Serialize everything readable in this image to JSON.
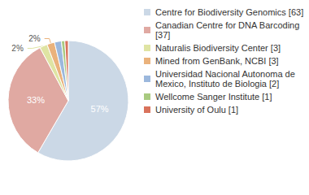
{
  "chart_data": {
    "type": "pie",
    "categories": [
      "Centre for Biodiversity Genomics [63]",
      "Canadian Centre for DNA Barcoding [37]",
      "Naturalis Biodiversity Center [3]",
      "Mined from GenBank, NCBI [3]",
      "Universidad Nacional Autonoma de Mexico, Instituto de Biologia [2]",
      "Wellcome Sanger Institute [1]",
      "University of Oulu [1]"
    ],
    "values": [
      57,
      33,
      2,
      2,
      1.8,
      0.9,
      0.9
    ],
    "value_labels": [
      "57%",
      "33%",
      "2%",
      "2%",
      null,
      null,
      null
    ],
    "colors": [
      "#cbd8e6",
      "#e0a9a2",
      "#dfe4a3",
      "#eab27c",
      "#9cb8dd",
      "#a9ca80",
      "#d9735c"
    ],
    "data_labels": true,
    "legend": "right"
  }
}
